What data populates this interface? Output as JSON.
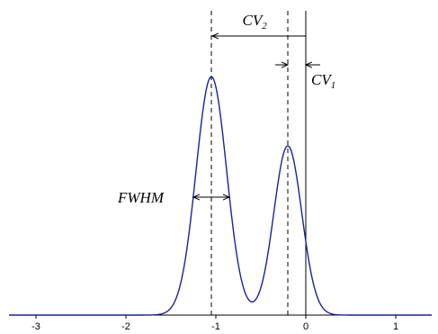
{
  "chart_data": {
    "type": "line",
    "title": "",
    "xlabel": "",
    "ylabel": "",
    "xlim": [
      -3.3,
      1.4
    ],
    "ylim": [
      0,
      1.05
    ],
    "x_ticks": [
      -3,
      -2,
      -1,
      0,
      1
    ],
    "x_tick_labels": [
      "-3",
      "-2",
      "-1",
      "0",
      "1"
    ],
    "grid": false,
    "legend": "none",
    "series": [
      {
        "color": "#1f1f9f",
        "peaks": [
          {
            "center": -1.05,
            "height": 1.0,
            "sigma": 0.17
          },
          {
            "center": -0.2,
            "height": 0.71,
            "sigma": 0.155
          }
        ]
      }
    ],
    "reference_lines": [
      {
        "x": -1.05,
        "style": "dashed"
      },
      {
        "x": -0.2,
        "style": "dashed"
      },
      {
        "x": 0,
        "style": "solid"
      }
    ],
    "annotations": {
      "cv2": {
        "base": "CV",
        "sub": "2",
        "x_from": 0,
        "x_to": -1.05
      },
      "cv1": {
        "base": "CV",
        "sub": "1",
        "x_from": 0,
        "x_to": -0.2
      },
      "fwhm": {
        "text": "FWHM",
        "x_from": -1.25,
        "x_to": -0.85
      }
    }
  }
}
